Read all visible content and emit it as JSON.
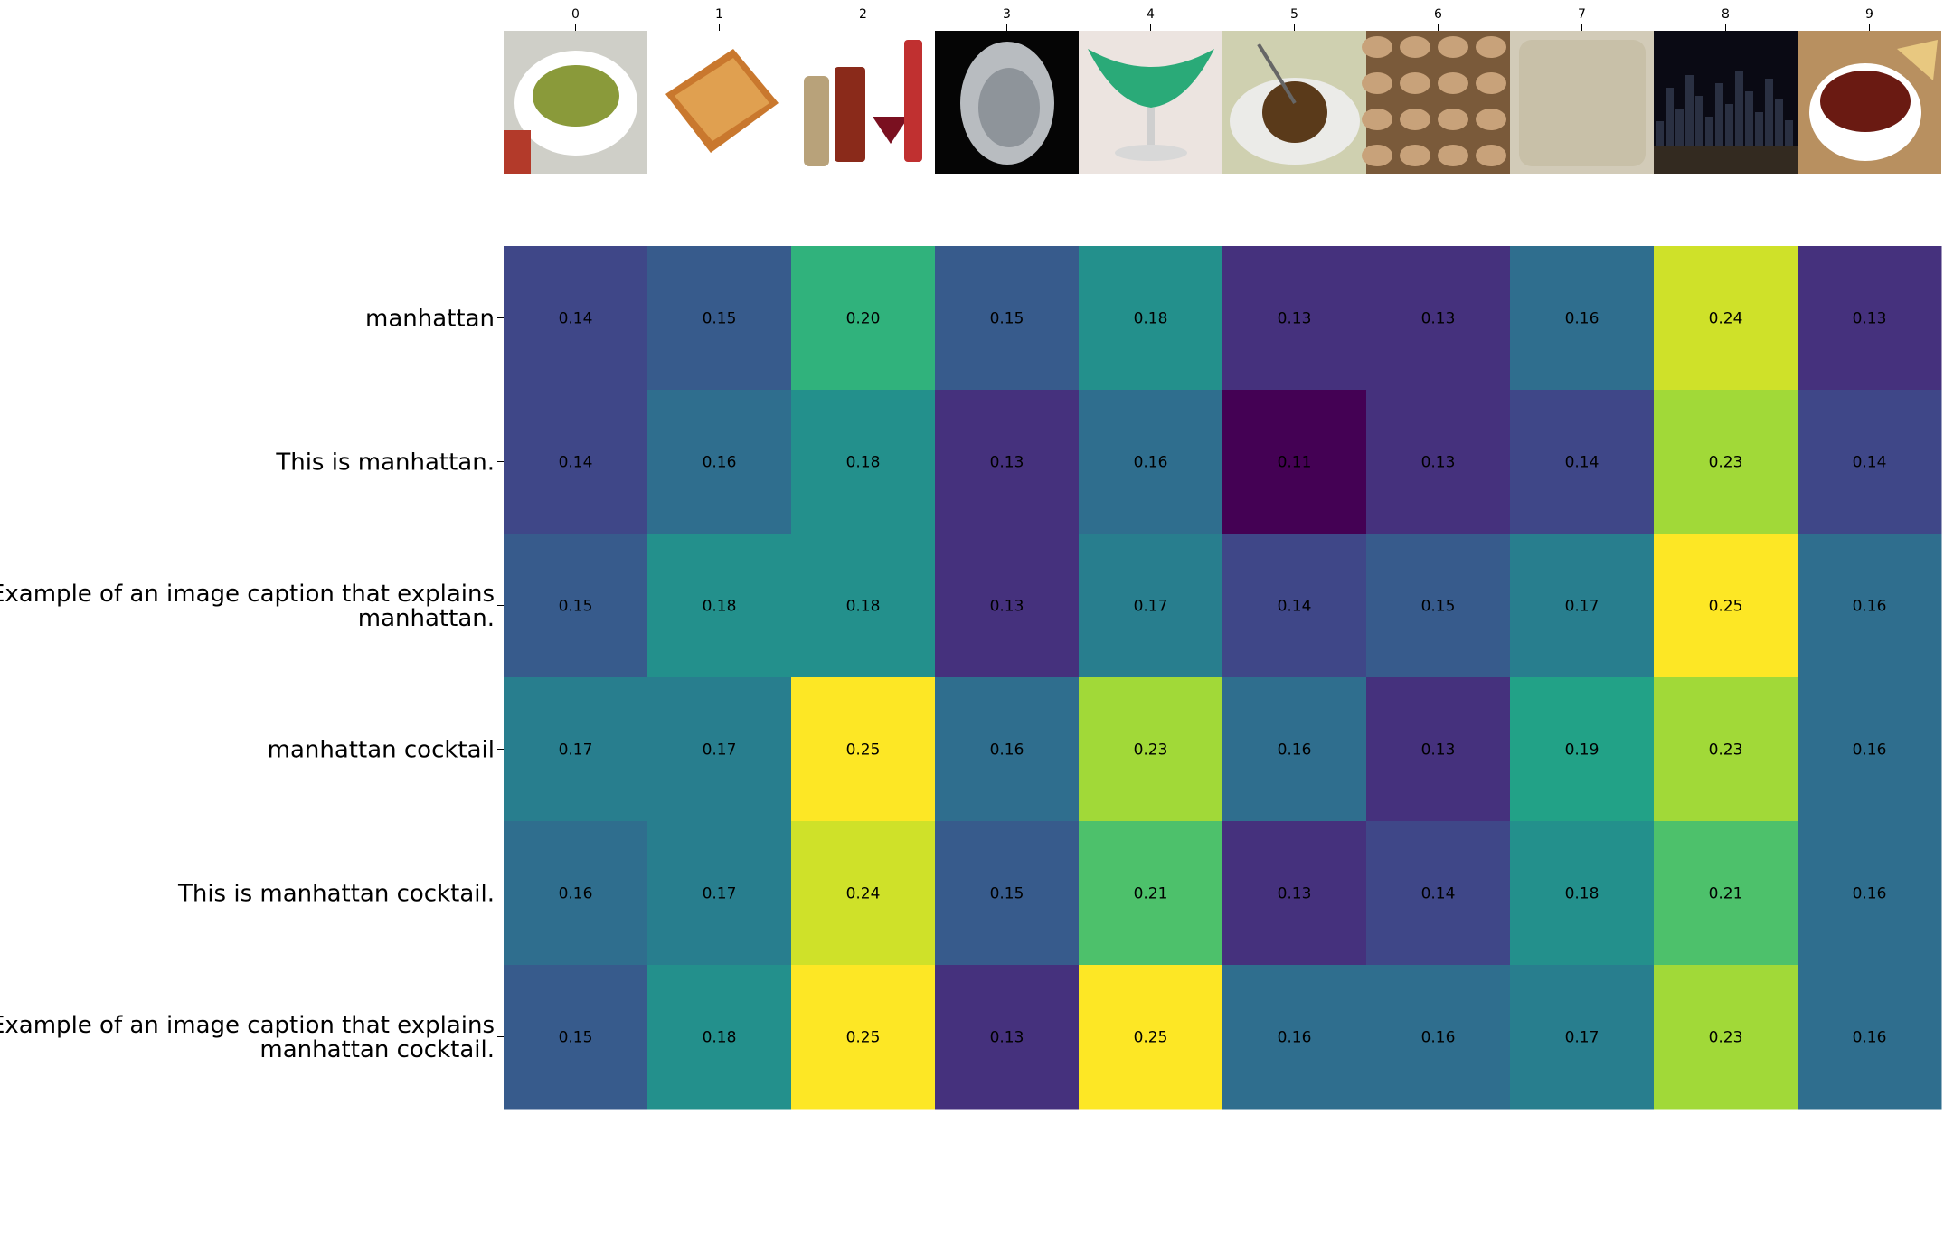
{
  "chart_data": {
    "type": "heatmap",
    "title": "",
    "xlabel": "",
    "ylabel": "",
    "colormap": "viridis",
    "color_range": [
      0.11,
      0.25
    ],
    "grid": false,
    "columns": [
      "0",
      "1",
      "2",
      "3",
      "4",
      "5",
      "6",
      "7",
      "8",
      "9"
    ],
    "column_images": [
      {
        "icon": "food-bowl-thumbnail",
        "description": "white bowl of green chopped vegetables"
      },
      {
        "icon": "brittle-bar-thumbnail",
        "description": "square bar of nut brittle on a plate"
      },
      {
        "icon": "cocktail-bottles-thumbnail",
        "description": "shaker, liquor bottles and a red cocktail glass"
      },
      {
        "icon": "oval-texture-thumbnail",
        "description": "grey oval textured shape on black background"
      },
      {
        "icon": "green-cocktail-thumbnail",
        "description": "green drink in a martini glass"
      },
      {
        "icon": "sauce-cup-thumbnail",
        "description": "small cup of dark sauce on a saucer"
      },
      {
        "icon": "pistachios-thumbnail",
        "description": "pile of pistachio shells"
      },
      {
        "icon": "porridge-thumbnail",
        "description": "light porridge with specks"
      },
      {
        "icon": "city-skyline-thumbnail",
        "description": "Manhattan skyline at night"
      },
      {
        "icon": "chili-bowl-thumbnail",
        "description": "bowl of chili with a tortilla chip"
      }
    ],
    "rows": [
      "manhattan",
      "This is manhattan.",
      "Example of an image caption that explains\nmanhattan.",
      "manhattan cocktail",
      "This is manhattan cocktail.",
      "Example of an image caption that explains\nmanhattan cocktail."
    ],
    "values": [
      [
        0.14,
        0.15,
        0.2,
        0.15,
        0.18,
        0.13,
        0.13,
        0.16,
        0.24,
        0.13
      ],
      [
        0.14,
        0.16,
        0.18,
        0.13,
        0.16,
        0.11,
        0.13,
        0.14,
        0.23,
        0.14
      ],
      [
        0.15,
        0.18,
        0.18,
        0.13,
        0.17,
        0.14,
        0.15,
        0.17,
        0.25,
        0.16
      ],
      [
        0.17,
        0.17,
        0.25,
        0.16,
        0.23,
        0.16,
        0.13,
        0.19,
        0.23,
        0.16
      ],
      [
        0.16,
        0.17,
        0.24,
        0.15,
        0.21,
        0.13,
        0.14,
        0.18,
        0.21,
        0.16
      ],
      [
        0.15,
        0.18,
        0.25,
        0.13,
        0.25,
        0.16,
        0.16,
        0.17,
        0.23,
        0.16
      ]
    ]
  }
}
